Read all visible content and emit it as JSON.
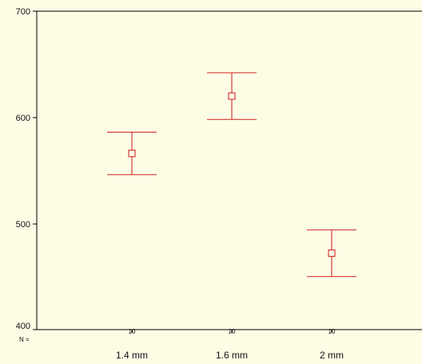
{
  "chart_data": {
    "type": "errorbar",
    "categories": [
      "1.4 mm",
      "1.6 mm",
      "2 mm"
    ],
    "n_prefix": "N =",
    "n_values": [
      "10",
      "10",
      "10"
    ],
    "series": [
      {
        "mean": [
          566,
          620,
          472
        ],
        "lower": [
          546,
          598,
          450
        ],
        "upper": [
          586,
          642,
          494
        ]
      }
    ],
    "y_ticks": [
      "700",
      "600",
      "500",
      "400"
    ],
    "ylim": [
      400,
      700
    ],
    "marker": "square",
    "color": "#d63a3a",
    "grid": false,
    "xlabel": "",
    "ylabel": "",
    "title": ""
  }
}
